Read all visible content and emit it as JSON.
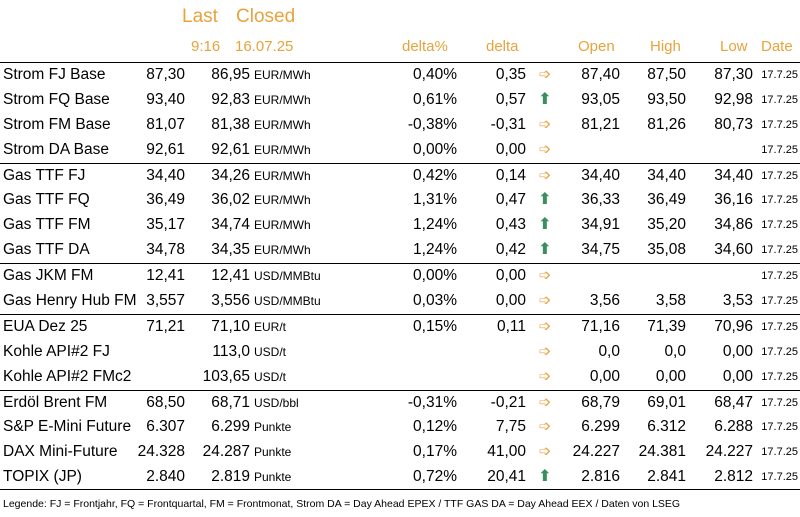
{
  "header": {
    "last": "Last",
    "closed": "Closed",
    "last_time": "9:16",
    "closed_date": "16.07.25",
    "delta_pct": "delta%",
    "delta": "delta",
    "open": "Open",
    "high": "High",
    "low": "Low",
    "date": "Date"
  },
  "rows": [
    {
      "name": "Strom FJ Base",
      "last": "87,30",
      "closed": "86,95",
      "unit": "EUR/MWh",
      "delta_pct": "0,40%",
      "delta": "0,35",
      "trend": "right",
      "open": "87,40",
      "high": "87,50",
      "low": "87,30",
      "date": "17.7.25"
    },
    {
      "name": "Strom FQ Base",
      "last": "93,40",
      "closed": "92,83",
      "unit": "EUR/MWh",
      "delta_pct": "0,61%",
      "delta": "0,57",
      "trend": "up",
      "open": "93,05",
      "high": "93,50",
      "low": "92,98",
      "date": "17.7.25"
    },
    {
      "name": "Strom FM Base",
      "last": "81,07",
      "closed": "81,38",
      "unit": "EUR/MWh",
      "delta_pct": "-0,38%",
      "delta": "-0,31",
      "trend": "right",
      "open": "81,21",
      "high": "81,26",
      "low": "80,73",
      "date": "17.7.25"
    },
    {
      "name": "Strom DA Base",
      "last": "92,61",
      "closed": "92,61",
      "unit": "EUR/MWh",
      "delta_pct": "0,00%",
      "delta": "0,00",
      "trend": "right",
      "open": "",
      "high": "",
      "low": "",
      "date": "17.7.25"
    },
    {
      "name": "Gas TTF FJ",
      "last": "34,40",
      "closed": "34,26",
      "unit": "EUR/MWh",
      "delta_pct": "0,42%",
      "delta": "0,14",
      "trend": "right",
      "open": "34,40",
      "high": "34,40",
      "low": "34,40",
      "date": "17.7.25"
    },
    {
      "name": "Gas TTF FQ",
      "last": "36,49",
      "closed": "36,02",
      "unit": "EUR/MWh",
      "delta_pct": "1,31%",
      "delta": "0,47",
      "trend": "up",
      "open": "36,33",
      "high": "36,49",
      "low": "36,16",
      "date": "17.7.25"
    },
    {
      "name": "Gas TTF FM",
      "last": "35,17",
      "closed": "34,74",
      "unit": "EUR/MWh",
      "delta_pct": "1,24%",
      "delta": "0,43",
      "trend": "up",
      "open": "34,91",
      "high": "35,20",
      "low": "34,86",
      "date": "17.7.25"
    },
    {
      "name": "Gas TTF DA",
      "last": "34,78",
      "closed": "34,35",
      "unit": "EUR/MWh",
      "delta_pct": "1,24%",
      "delta": "0,42",
      "trend": "up",
      "open": "34,75",
      "high": "35,08",
      "low": "34,60",
      "date": "17.7.25"
    },
    {
      "name": "Gas JKM FM",
      "last": "12,41",
      "closed": "12,41",
      "unit": "USD/MMBtu",
      "delta_pct": "0,00%",
      "delta": "0,00",
      "trend": "right",
      "open": "",
      "high": "",
      "low": "",
      "date": "17.7.25"
    },
    {
      "name": "Gas Henry Hub FM",
      "last": "3,557",
      "closed": "3,556",
      "unit": "USD/MMBtu",
      "delta_pct": "0,03%",
      "delta": "0,00",
      "trend": "right",
      "open": "3,56",
      "high": "3,58",
      "low": "3,53",
      "date": "17.7.25"
    },
    {
      "name": "EUA Dez 25",
      "last": "71,21",
      "closed": "71,10",
      "unit": "EUR/t",
      "delta_pct": "0,15%",
      "delta": "0,11",
      "trend": "right",
      "open": "71,16",
      "high": "71,39",
      "low": "70,96",
      "date": "17.7.25"
    },
    {
      "name": "Kohle API#2 FJ",
      "last": "",
      "closed": "113,0",
      "unit": "USD/t",
      "delta_pct": "",
      "delta": "",
      "trend": "right",
      "open": "0,0",
      "high": "0,0",
      "low": "0,00",
      "date": "17.7.25"
    },
    {
      "name": "Kohle API#2 FMc2",
      "last": "",
      "closed": "103,65",
      "unit": "USD/t",
      "delta_pct": "",
      "delta": "",
      "trend": "right",
      "open": "0,00",
      "high": "0,00",
      "low": "0,00",
      "date": "17.7.25"
    },
    {
      "name": "Erdöl Brent FM",
      "last": "68,50",
      "closed": "68,71",
      "unit": "USD/bbl",
      "delta_pct": "-0,31%",
      "delta": "-0,21",
      "trend": "right",
      "open": "68,79",
      "high": "69,01",
      "low": "68,47",
      "date": "17.7.25"
    },
    {
      "name": "S&P E-Mini Future",
      "last": "6.307",
      "closed": "6.299",
      "unit": "Punkte",
      "delta_pct": "0,12%",
      "delta": "7,75",
      "trend": "right",
      "open": "6.299",
      "high": "6.312",
      "low": "6.288",
      "date": "17.7.25"
    },
    {
      "name": "DAX Mini-Future",
      "last": "24.328",
      "closed": "24.287",
      "unit": "Punkte",
      "delta_pct": "0,17%",
      "delta": "41,00",
      "trend": "right",
      "open": "24.227",
      "high": "24.381",
      "low": "24.227",
      "date": "17.7.25"
    },
    {
      "name": "TOPIX (JP)",
      "last": "2.840",
      "closed": "2.819",
      "unit": "Punkte",
      "delta_pct": "0,72%",
      "delta": "20,41",
      "trend": "up",
      "open": "2.816",
      "high": "2.841",
      "low": "2.812",
      "date": "17.7.25"
    }
  ],
  "row_separators_before": [
    0,
    4,
    8,
    10,
    13
  ],
  "icons": {
    "right": "arrow-right-icon",
    "up": "arrow-up-icon"
  },
  "colors": {
    "header": "#E8A33C",
    "arrow_right": "#E8A33C",
    "arrow_up": "#3B8F5F"
  },
  "legend": "Legende: FJ = Frontjahr, FQ = Frontquartal, FM = Frontmonat, Strom DA = Day Ahead EPEX / TTF GAS DA = Day Ahead EEX / Daten von LSEG"
}
